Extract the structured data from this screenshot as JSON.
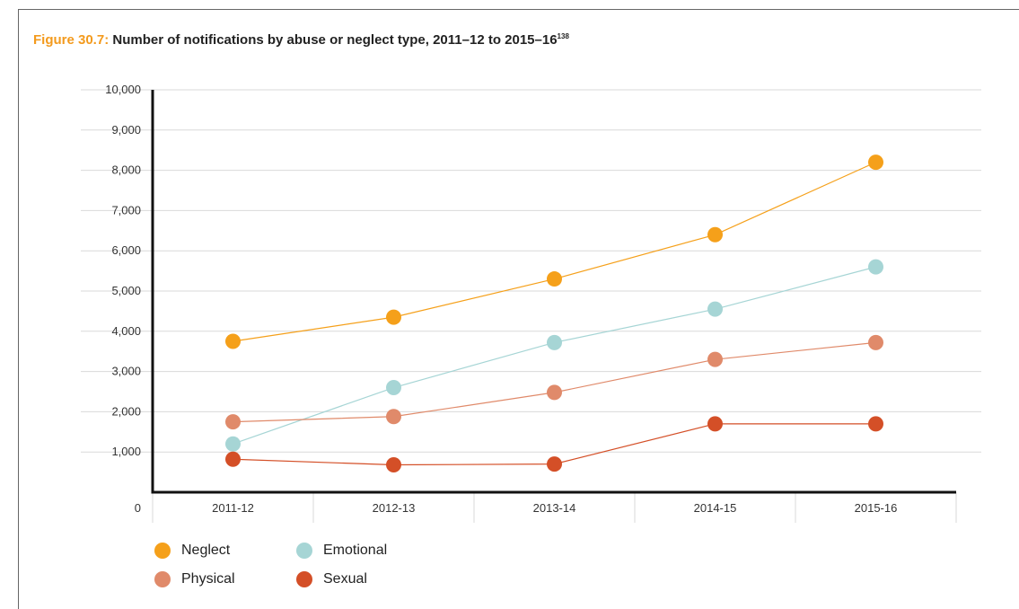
{
  "figure": {
    "label": "Figure 30.7:",
    "title": " Number of notifications by abuse or neglect type, 2011–12 to 2015–16",
    "footnote": "138"
  },
  "chart_data": {
    "type": "line",
    "categories": [
      "2011-12",
      "2012-13",
      "2013-14",
      "2014-15",
      "2015-16"
    ],
    "y_ticks": [
      "0",
      "1,000",
      "2,000",
      "3,000",
      "4,000",
      "5,000",
      "6,000",
      "7,000",
      "8,000",
      "9,000",
      "10,000"
    ],
    "ylim": [
      0,
      10000
    ],
    "grid": true,
    "legend_position": "bottom-left",
    "series": [
      {
        "name": "Neglect",
        "color": "#f5a01a",
        "values": [
          3750,
          4350,
          5300,
          6400,
          8200
        ]
      },
      {
        "name": "Emotional",
        "color": "#a6d5d5",
        "values": [
          1200,
          2600,
          3720,
          4550,
          5600
        ]
      },
      {
        "name": "Physical",
        "color": "#e08a6a",
        "values": [
          1750,
          1880,
          2480,
          3300,
          3720
        ]
      },
      {
        "name": "Sexual",
        "color": "#d44f27",
        "values": [
          820,
          680,
          700,
          1700,
          1700
        ]
      }
    ]
  },
  "legend": {
    "items": [
      {
        "label": "Neglect",
        "color": "#f5a01a"
      },
      {
        "label": "Emotional",
        "color": "#a6d5d5"
      },
      {
        "label": "Physical",
        "color": "#e08a6a"
      },
      {
        "label": "Sexual",
        "color": "#d44f27"
      }
    ]
  }
}
